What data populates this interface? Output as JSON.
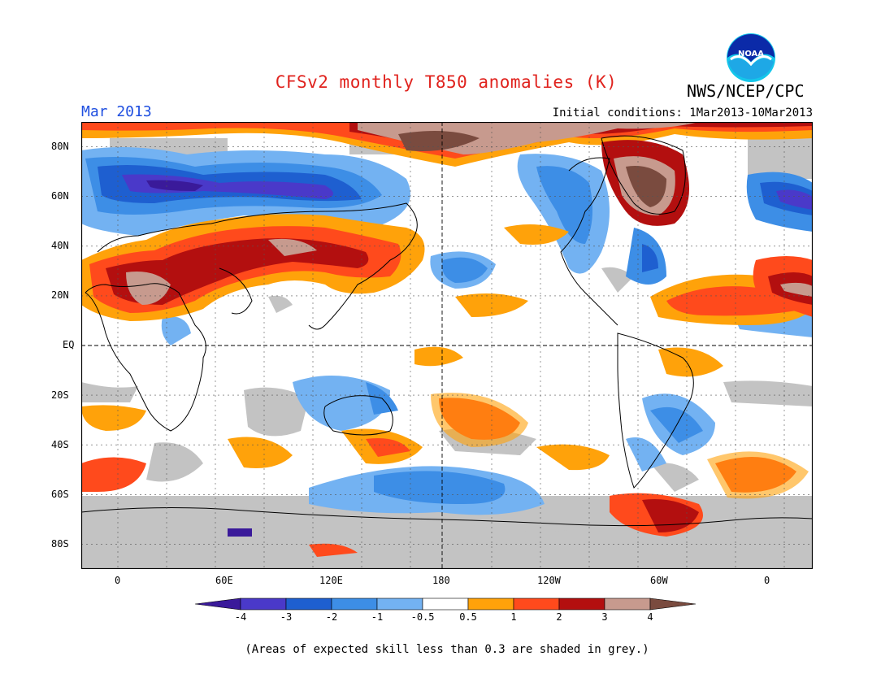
{
  "header": {
    "title": "CFSv2 monthly T850 anomalies (K)",
    "agency": "NWS/NCEP/CPC",
    "logo_text": "NOAA",
    "month": "Mar 2013",
    "initial_conditions": "Initial conditions: 1Mar2013-10Mar2013"
  },
  "map": {
    "lat_labels": [
      "80N",
      "60N",
      "40N",
      "20N",
      "EQ",
      "20S",
      "40S",
      "60S",
      "80S"
    ],
    "lon_labels": [
      "0",
      "60E",
      "120E",
      "180",
      "120W",
      "60W",
      "0"
    ]
  },
  "colorbar": {
    "tick_labels": [
      "-4",
      "-3",
      "-2",
      "-1",
      "-0.5",
      "0.5",
      "1",
      "2",
      "3",
      "4"
    ],
    "colors": [
      "#3a1a9a",
      "#4a39c9",
      "#1e5fd0",
      "#3d8ee6",
      "#73b2f2",
      "#ffffff",
      "#ffa20a",
      "#ff4a1c",
      "#b30f0f",
      "#c79a8e",
      "#7a4b3f"
    ]
  },
  "footer": {
    "note": "(Areas of expected skill less than 0.3 are shaded in grey.)"
  }
}
